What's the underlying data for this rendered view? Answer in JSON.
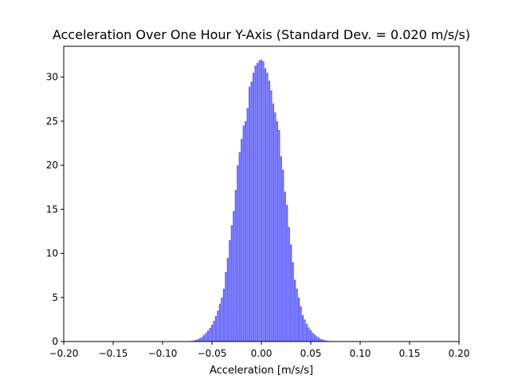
{
  "chart_data": {
    "type": "bar",
    "title": "Acceleration Over One Hour Y-Axis (Standard Dev. = 0.020 m/s/s)",
    "xlabel": "Acceleration [m/s/s]",
    "ylabel": "",
    "xlim": [
      -0.2,
      0.2
    ],
    "ylim": [
      0,
      33.5
    ],
    "xticks": [
      -0.2,
      -0.15,
      -0.1,
      -0.05,
      0.0,
      0.05,
      0.1,
      0.15,
      0.2
    ],
    "xtick_labels": [
      "−0.20",
      "−0.15",
      "−0.10",
      "−0.05",
      "0.00",
      "0.05",
      "0.10",
      "0.15",
      "0.20"
    ],
    "yticks": [
      0,
      5,
      10,
      15,
      20,
      25,
      30
    ],
    "ytick_labels": [
      "0",
      "5",
      "10",
      "15",
      "20",
      "25",
      "30"
    ],
    "grid": false,
    "bar_color": "#6666ff",
    "bar_width": 0.0018,
    "x": [
      -0.072,
      -0.07,
      -0.068,
      -0.066,
      -0.064,
      -0.062,
      -0.06,
      -0.058,
      -0.056,
      -0.054,
      -0.052,
      -0.05,
      -0.048,
      -0.046,
      -0.044,
      -0.042,
      -0.04,
      -0.038,
      -0.036,
      -0.034,
      -0.032,
      -0.03,
      -0.028,
      -0.026,
      -0.024,
      -0.022,
      -0.02,
      -0.018,
      -0.016,
      -0.014,
      -0.012,
      -0.01,
      -0.008,
      -0.006,
      -0.004,
      -0.002,
      0.0,
      0.002,
      0.004,
      0.006,
      0.008,
      0.01,
      0.012,
      0.014,
      0.016,
      0.018,
      0.02,
      0.022,
      0.024,
      0.026,
      0.028,
      0.03,
      0.032,
      0.034,
      0.036,
      0.038,
      0.04,
      0.042,
      0.044,
      0.046,
      0.048,
      0.05,
      0.052,
      0.054,
      0.056,
      0.058,
      0.06,
      0.062,
      0.064,
      0.066,
      0.068,
      0.07,
      0.072
    ],
    "values": [
      0.05,
      0.08,
      0.12,
      0.18,
      0.27,
      0.4,
      0.55,
      0.75,
      0.98,
      1.25,
      1.55,
      1.9,
      2.35,
      2.9,
      3.5,
      4.3,
      5.0,
      6.0,
      7.9,
      9.5,
      11.5,
      13.2,
      14.8,
      17.2,
      20.0,
      21.5,
      23.0,
      24.5,
      25.0,
      26.5,
      28.9,
      29.5,
      30.5,
      31.3,
      31.6,
      31.9,
      32.0,
      31.8,
      31.0,
      30.5,
      29.6,
      28.5,
      27.0,
      26.0,
      25.0,
      24.0,
      21.0,
      19.5,
      17.0,
      15.5,
      13.0,
      11.0,
      9.0,
      7.0,
      6.0,
      5.0,
      4.0,
      3.0,
      2.5,
      2.0,
      1.6,
      1.3,
      1.0,
      0.8,
      0.6,
      0.45,
      0.32,
      0.22,
      0.15,
      0.1,
      0.07,
      0.05,
      0.03
    ]
  }
}
